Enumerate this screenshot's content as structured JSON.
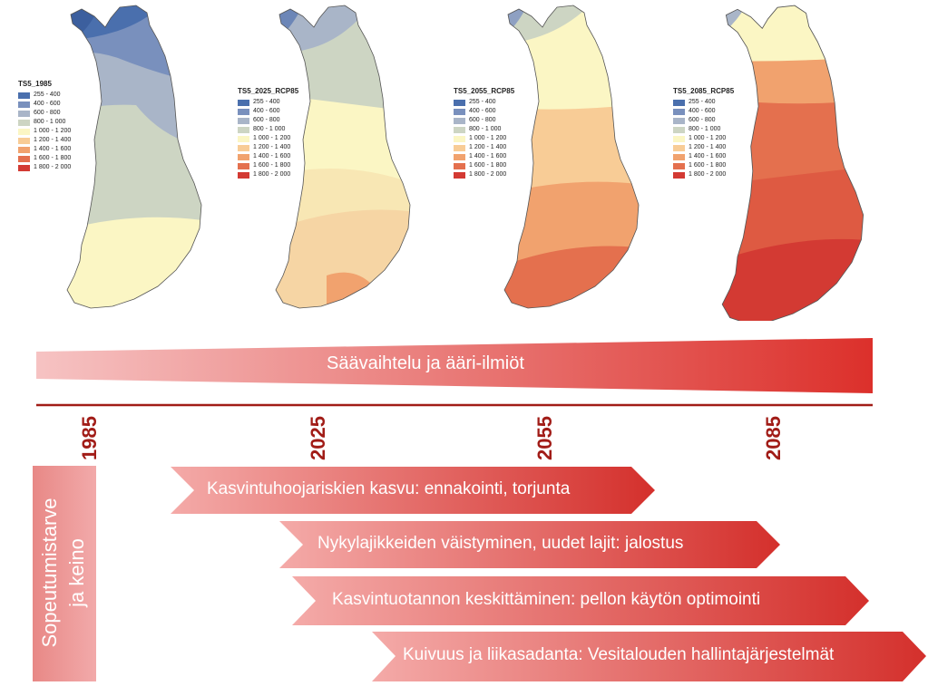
{
  "maps": [
    {
      "title": "TS5_1985"
    },
    {
      "title": "TS5_2025_RCP85"
    },
    {
      "title": "TS5_2055_RCP85"
    },
    {
      "title": "TS5_2085_RCP85"
    }
  ],
  "legend_items": [
    {
      "label": "255 - 400",
      "color": "#4a6fad"
    },
    {
      "label": "400 - 600",
      "color": "#7990bd"
    },
    {
      "label": "600 - 800",
      "color": "#a9b5c8"
    },
    {
      "label": "800 - 1 000",
      "color": "#cdd5c3"
    },
    {
      "label": "1 000 - 1 200",
      "color": "#fbf6c4"
    },
    {
      "label": "1 200 - 1 400",
      "color": "#f8cc96"
    },
    {
      "label": "1 400 - 1 600",
      "color": "#f1a26e"
    },
    {
      "label": "1 600 - 1 800",
      "color": "#e4704e"
    },
    {
      "label": "1 800 - 2 000",
      "color": "#d33a33"
    }
  ],
  "trend_arrow": {
    "label": "Säävaihtelu ja ääri-ilmiöt"
  },
  "years": [
    "1985",
    "2025",
    "2055",
    "2085"
  ],
  "side_label": "Sopeutumistarve ja keino",
  "adaptations": [
    {
      "label": "Kasvintuhoojariskien kasvu: ennakointi, torjunta"
    },
    {
      "label": "Nykylajikkeiden väistyminen, uudet lajit: jalostus"
    },
    {
      "label": "Kasvintuotannon keskittäminen: pellon käytön optimointi"
    },
    {
      "label": "Kuivuus ja liikasadanta: Vesitalouden hallintajärjestelmät"
    }
  ]
}
